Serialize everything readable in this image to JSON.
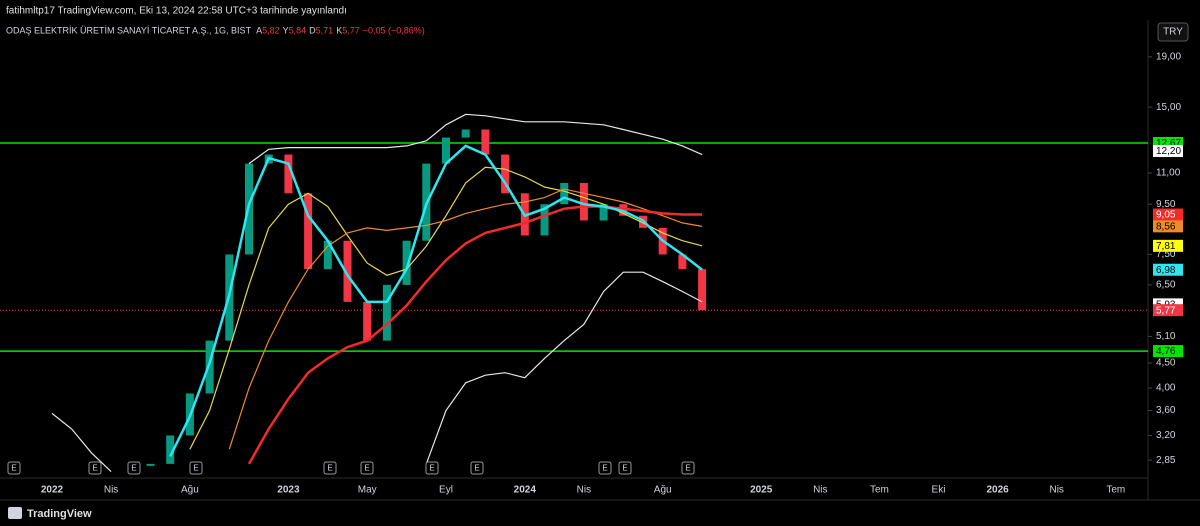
{
  "header": {
    "author": "fatihmltp17 TradingView.com, Eki 13, 2024 22:58 UTC+3 tarihinde yayınlandı",
    "symbol": "ODAŞ ELEKTRİK ÜRETİM SANAYİ TİCARET A.Ş., 1G, BIST",
    "ohlc": [
      {
        "key": "A",
        "value": "5,82"
      },
      {
        "key": "Y",
        "value": "5,84"
      },
      {
        "key": "D",
        "value": "5,71"
      },
      {
        "key": "K",
        "value": "5,77"
      }
    ],
    "change": "−0,05 (−0,86%)"
  },
  "currency": "TRY",
  "events": {
    "label": "E"
  },
  "footer": "TradingView",
  "chart_data": {
    "type": "line",
    "log_scale": true,
    "categories": [
      "2022",
      null,
      null,
      "Nis",
      null,
      null,
      null,
      "Ağu",
      null,
      null,
      null,
      null,
      "2023",
      null,
      null,
      null,
      "May",
      null,
      null,
      null,
      "Eyl",
      null,
      null,
      null,
      "2024",
      null,
      null,
      "Nis",
      null,
      null,
      null,
      "Ağu",
      null,
      null,
      null,
      null,
      "2025",
      null,
      null,
      "Nis",
      null,
      null,
      "Tem",
      null,
      null,
      "Eki",
      null,
      null,
      "2026",
      null,
      null,
      "Nis",
      null,
      null,
      "Tem"
    ],
    "ylim": [
      2.62,
      22.6
    ],
    "yticks": [
      {
        "value": 19,
        "label": "19,00"
      },
      {
        "value": 15,
        "label": "15,00"
      },
      {
        "value": 11,
        "label": "11,00"
      },
      {
        "value": 9.5,
        "label": "9,50"
      },
      {
        "value": 7.5,
        "label": "7,50"
      },
      {
        "value": 6.5,
        "label": "6,50"
      },
      {
        "value": 5.1,
        "label": "5,10"
      },
      {
        "value": 4.5,
        "label": "4,50"
      },
      {
        "value": 4,
        "label": "4,00"
      },
      {
        "value": 3.6,
        "label": "3,60"
      },
      {
        "value": 3.2,
        "label": "3,20"
      },
      {
        "value": 2.85,
        "label": "2,85"
      }
    ],
    "price": {
      "up_color": "#089981",
      "down_color": "#f23645",
      "values": [
        null,
        null,
        null,
        null,
        null,
        2.8,
        3.2,
        3.9,
        5.0,
        7.5,
        11.5,
        12.0,
        10.0,
        7.0,
        8.0,
        6.0,
        5.0,
        6.5,
        8.0,
        11.5,
        13.0,
        13.5,
        12.0,
        10.0,
        8.2,
        9.5,
        10.5,
        8.8,
        9.5,
        9.0,
        8.5,
        7.5,
        7.0,
        5.77,
        null,
        null,
        null,
        null,
        null,
        null,
        null,
        null,
        null,
        null,
        null,
        null,
        null,
        null,
        null,
        null,
        null,
        null,
        null,
        null,
        null
      ]
    },
    "series": [
      {
        "color": "#e8e8e8",
        "values": [
          null,
          null,
          null,
          null,
          null,
          null,
          null,
          null,
          null,
          null,
          11.5,
          12.3,
          12.4,
          12.4,
          12.4,
          12.4,
          12.4,
          12.4,
          12.5,
          12.8,
          13.8,
          14.5,
          14.4,
          14.2,
          14.0,
          14.0,
          14.0,
          13.9,
          13.8,
          13.5,
          13.2,
          12.9,
          12.5,
          12.0,
          null,
          null,
          null,
          null,
          null,
          null,
          null,
          null,
          null,
          null,
          null,
          null,
          null,
          null,
          null,
          null,
          null,
          null,
          null,
          null,
          null
        ]
      },
      {
        "color": "#e8e8e8",
        "values": [
          3.55,
          3.3,
          2.95,
          2.7,
          null,
          null,
          null,
          null,
          null,
          null,
          null,
          null,
          null,
          null,
          null,
          null,
          null,
          null,
          null,
          2.8,
          3.6,
          4.1,
          4.25,
          4.3,
          4.2,
          4.6,
          5.0,
          5.4,
          6.3,
          6.9,
          6.9,
          6.6,
          6.3,
          6.0,
          null,
          null,
          null,
          null,
          null,
          null,
          null,
          null,
          null,
          null,
          null,
          null,
          null,
          null,
          null,
          null,
          null,
          null,
          null,
          null,
          null
        ]
      },
      {
        "color": "#e6d84a",
        "values": [
          null,
          null,
          null,
          null,
          null,
          null,
          null,
          3.0,
          3.6,
          4.8,
          6.5,
          8.5,
          9.5,
          10.0,
          9.4,
          8.2,
          7.2,
          6.8,
          7.0,
          7.8,
          9.0,
          10.5,
          11.3,
          11.2,
          10.8,
          10.3,
          10.1,
          9.8,
          9.5,
          9.1,
          8.7,
          8.3,
          8.0,
          7.81,
          null,
          null,
          null,
          null,
          null,
          null,
          null,
          null,
          null,
          null,
          null,
          null,
          null,
          null,
          null,
          null,
          null,
          null,
          null,
          null,
          null
        ]
      },
      {
        "color": "#f08a24",
        "values": [
          null,
          null,
          null,
          null,
          null,
          null,
          null,
          null,
          null,
          3.0,
          4.0,
          5.0,
          6.0,
          7.0,
          7.8,
          8.3,
          8.5,
          8.4,
          8.5,
          8.6,
          8.8,
          9.1,
          9.3,
          9.5,
          9.6,
          9.8,
          10.2,
          10.0,
          9.8,
          9.6,
          9.3,
          9.0,
          8.7,
          8.56,
          null,
          null,
          null,
          null,
          null,
          null,
          null,
          null,
          null,
          null,
          null,
          null,
          null,
          null,
          null,
          null,
          null,
          null,
          null,
          null,
          null
        ]
      },
      {
        "color": "#f22a2a",
        "values": [
          null,
          null,
          null,
          null,
          null,
          null,
          null,
          null,
          null,
          null,
          2.8,
          3.3,
          3.8,
          4.3,
          4.6,
          4.85,
          5.0,
          5.4,
          5.9,
          6.6,
          7.3,
          7.9,
          8.3,
          8.5,
          8.7,
          9.0,
          9.3,
          9.4,
          9.4,
          9.3,
          9.2,
          9.1,
          9.05,
          9.05,
          null,
          null,
          null,
          null,
          null,
          null,
          null,
          null,
          null,
          null,
          null,
          null,
          null,
          null,
          null,
          null,
          null,
          null,
          null,
          null,
          null
        ]
      },
      {
        "color": "#2ee6f0",
        "values": [
          null,
          null,
          null,
          null,
          null,
          null,
          2.9,
          3.5,
          4.5,
          6.2,
          9.5,
          11.8,
          11.5,
          9.0,
          8.0,
          6.8,
          6.0,
          6.0,
          7.0,
          9.5,
          11.5,
          12.5,
          12.0,
          10.5,
          9.0,
          9.3,
          9.8,
          9.5,
          9.4,
          9.2,
          8.8,
          8.0,
          7.5,
          6.98,
          null,
          null,
          null,
          null,
          null,
          null,
          null,
          null,
          null,
          null,
          null,
          null,
          null,
          null,
          null,
          null,
          null,
          null,
          null,
          null,
          null
        ]
      }
    ],
    "price_tags": [
      {
        "value": 12.67,
        "label": "12,67",
        "color": "#00e600",
        "text_color": "#000",
        "line": "solid"
      },
      {
        "value": 12.2,
        "label": "12,20",
        "color": "#ffffff",
        "text_color": "#000"
      },
      {
        "value": 9.05,
        "label": "9,05",
        "color": "#f22a2a",
        "text_color": "#fff"
      },
      {
        "value": 8.56,
        "label": "8,56",
        "color": "#f08a24",
        "text_color": "#000"
      },
      {
        "value": 7.81,
        "label": "7,81",
        "color": "#ffff00",
        "text_color": "#000"
      },
      {
        "value": 6.98,
        "label": "6,98",
        "color": "#2ee6f0",
        "text_color": "#000"
      },
      {
        "value": 5.93,
        "label": "5,93",
        "color": "#ffffff",
        "text_color": "#000"
      },
      {
        "value": 5.77,
        "label": "5,77",
        "color": "#f23645",
        "text_color": "#fff",
        "line": "dotted"
      },
      {
        "value": 4.76,
        "label": "4,76",
        "color": "#00e600",
        "text_color": "#000",
        "line": "solid"
      }
    ]
  }
}
